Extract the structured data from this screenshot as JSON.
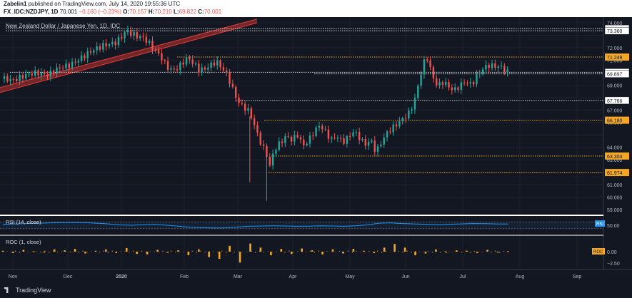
{
  "header": {
    "author": "Zabelin1",
    "published": "published on TradingView.com, July 14, 2020 19:55:36 UTC",
    "symbol": "FX_IDC:NZDJPY, 1D",
    "last": "70.001",
    "change": "−0.160 (−0.23%)",
    "o_label": "O:",
    "o_value": "70.157",
    "h_label": "H:",
    "h_value": "70.210",
    "l_label": "L:",
    "l_value": "69.822",
    "c_label": "C:",
    "c_value": "70.001"
  },
  "footer": {
    "brand": "TradingView"
  },
  "colors": {
    "bg": "#131722",
    "up": "#26a69a",
    "down": "#ef5350",
    "grid": "#1e2230",
    "orange": "#f5a623",
    "rsi": "#2196f3",
    "channel": "#e53935",
    "axis_text": "#b2b5be"
  },
  "chart_data": {
    "type": "candlestick",
    "title": "New Zealand Dollar / Japanese Yen, 1D, IDC",
    "ylim": [
      59.0,
      74.0
    ],
    "y_ticks": [
      "74.000",
      "72.000",
      "71.000",
      "70.000",
      "69.000",
      "67.000",
      "66.000",
      "64.000",
      "63.000",
      "62.000",
      "61.000",
      "60.000",
      "59.000"
    ],
    "x_ticks": [
      "Nov",
      "Dec",
      "2020",
      "Feb",
      "Mar",
      "Apr",
      "May",
      "Jun",
      "Jul",
      "Aug",
      "Sep"
    ],
    "price_path": [
      [
        0,
        69.5
      ],
      [
        8,
        69.4
      ],
      [
        16,
        69.8
      ],
      [
        24,
        70.0
      ],
      [
        32,
        69.8
      ],
      [
        40,
        70.4
      ],
      [
        48,
        70.6
      ],
      [
        56,
        71.2
      ],
      [
        64,
        71.8
      ],
      [
        72,
        72.2
      ],
      [
        80,
        72.4
      ],
      [
        84,
        72.8
      ],
      [
        88,
        73.4
      ],
      [
        92,
        73.1
      ],
      [
        96,
        72.9
      ],
      [
        100,
        72.8
      ],
      [
        104,
        72.4
      ],
      [
        108,
        71.8
      ],
      [
        112,
        71.4
      ],
      [
        116,
        70.6
      ],
      [
        120,
        70.2
      ],
      [
        124,
        70.3
      ],
      [
        128,
        70.8
      ],
      [
        132,
        71.2
      ],
      [
        136,
        70.7
      ],
      [
        140,
        70.2
      ],
      [
        144,
        70.3
      ],
      [
        148,
        70.6
      ],
      [
        152,
        70.9
      ],
      [
        156,
        70.4
      ],
      [
        160,
        69.8
      ],
      [
        164,
        68.6
      ],
      [
        168,
        67.6
      ],
      [
        172,
        67.2
      ],
      [
        176,
        66.8
      ],
      [
        180,
        65.5
      ],
      [
        184,
        64.3
      ],
      [
        188,
        63.4
      ],
      [
        190,
        62.4
      ],
      [
        192,
        63.3
      ],
      [
        194,
        63.9
      ],
      [
        198,
        64.4
      ],
      [
        202,
        64.9
      ],
      [
        206,
        64.6
      ],
      [
        210,
        65.0
      ],
      [
        214,
        64.1
      ],
      [
        218,
        64.6
      ],
      [
        222,
        65.3
      ],
      [
        226,
        65.8
      ],
      [
        230,
        65.2
      ],
      [
        234,
        64.6
      ],
      [
        238,
        64.9
      ],
      [
        242,
        64.4
      ],
      [
        246,
        64.8
      ],
      [
        250,
        65.3
      ],
      [
        254,
        64.8
      ],
      [
        258,
        64.2
      ],
      [
        262,
        64.6
      ],
      [
        266,
        63.6
      ],
      [
        270,
        64.5
      ],
      [
        274,
        65.2
      ],
      [
        278,
        65.6
      ],
      [
        282,
        66.0
      ],
      [
        286,
        66.4
      ],
      [
        290,
        66.8
      ],
      [
        294,
        68.0
      ],
      [
        298,
        70.0
      ],
      [
        300,
        70.8
      ],
      [
        302,
        71.3
      ],
      [
        304,
        70.6
      ],
      [
        306,
        69.7
      ],
      [
        310,
        68.9
      ],
      [
        314,
        69.3
      ],
      [
        318,
        68.8
      ],
      [
        322,
        68.6
      ],
      [
        326,
        69.0
      ],
      [
        330,
        69.3
      ],
      [
        334,
        69.0
      ],
      [
        338,
        69.8
      ],
      [
        342,
        70.3
      ],
      [
        346,
        70.6
      ],
      [
        350,
        70.5
      ],
      [
        354,
        70.5
      ],
      [
        358,
        70.2
      ],
      [
        360,
        70.0
      ]
    ],
    "horizontal_levels": [
      {
        "label": "73.536",
        "value": 73.536,
        "style": "dotted-white"
      },
      {
        "label": "73.360",
        "value": 73.36,
        "style": "dotted-white"
      },
      {
        "label": "71.249",
        "value": 71.249,
        "style": "dotted-orange"
      },
      {
        "label": "70.030",
        "value": 70.03,
        "style": "dotted-white"
      },
      {
        "label": "69.897",
        "value": 69.897,
        "style": "dotted-white"
      },
      {
        "label": "67.766",
        "value": 67.766,
        "style": "dotted-white"
      },
      {
        "label": "66.180",
        "value": 66.18,
        "style": "dotted-orange"
      },
      {
        "label": "63.304",
        "value": 63.304,
        "style": "dotted-orange"
      },
      {
        "label": "61.974",
        "value": 61.974,
        "style": "dotted-orange"
      }
    ],
    "rsi": {
      "title": "RSI (14, close)",
      "last_label": "RSI",
      "ylim": [
        0,
        100
      ],
      "tick": "50.00",
      "values": [
        55,
        58,
        60,
        62,
        64,
        66,
        66,
        65,
        62,
        58,
        52,
        50,
        54,
        55,
        50,
        44,
        38,
        36,
        34,
        35,
        40,
        44,
        46,
        47,
        46,
        44,
        45,
        47,
        46,
        44,
        47,
        52,
        62,
        64,
        60,
        58,
        56,
        54,
        56,
        58,
        60,
        59,
        58,
        57
      ]
    },
    "roc": {
      "title": "ROC (1, close)",
      "last_label": "ROC",
      "ylim": [
        -3,
        3
      ],
      "ticks": [
        "0.00",
        "−2.50"
      ],
      "values": [
        0.2,
        -0.3,
        0.4,
        0.1,
        -0.2,
        0.5,
        0.3,
        0.6,
        -0.4,
        0.2,
        0.5,
        -0.3,
        0.8,
        -0.5,
        -0.6,
        0.4,
        -0.2,
        0.3,
        -0.8,
        0.5,
        -1.2,
        -1.6,
        1.3,
        -2.4,
        1.8,
        0.9,
        -0.8,
        0.6,
        -0.5,
        0.7,
        0.3,
        -0.6,
        0.5,
        -0.4,
        0.6,
        0.2,
        -0.3,
        0.9,
        1.7,
        0.9,
        -0.8,
        -0.4,
        0.5,
        -0.2,
        0.3,
        0.2,
        -0.3,
        0.4,
        -0.2,
        0.1
      ]
    }
  }
}
